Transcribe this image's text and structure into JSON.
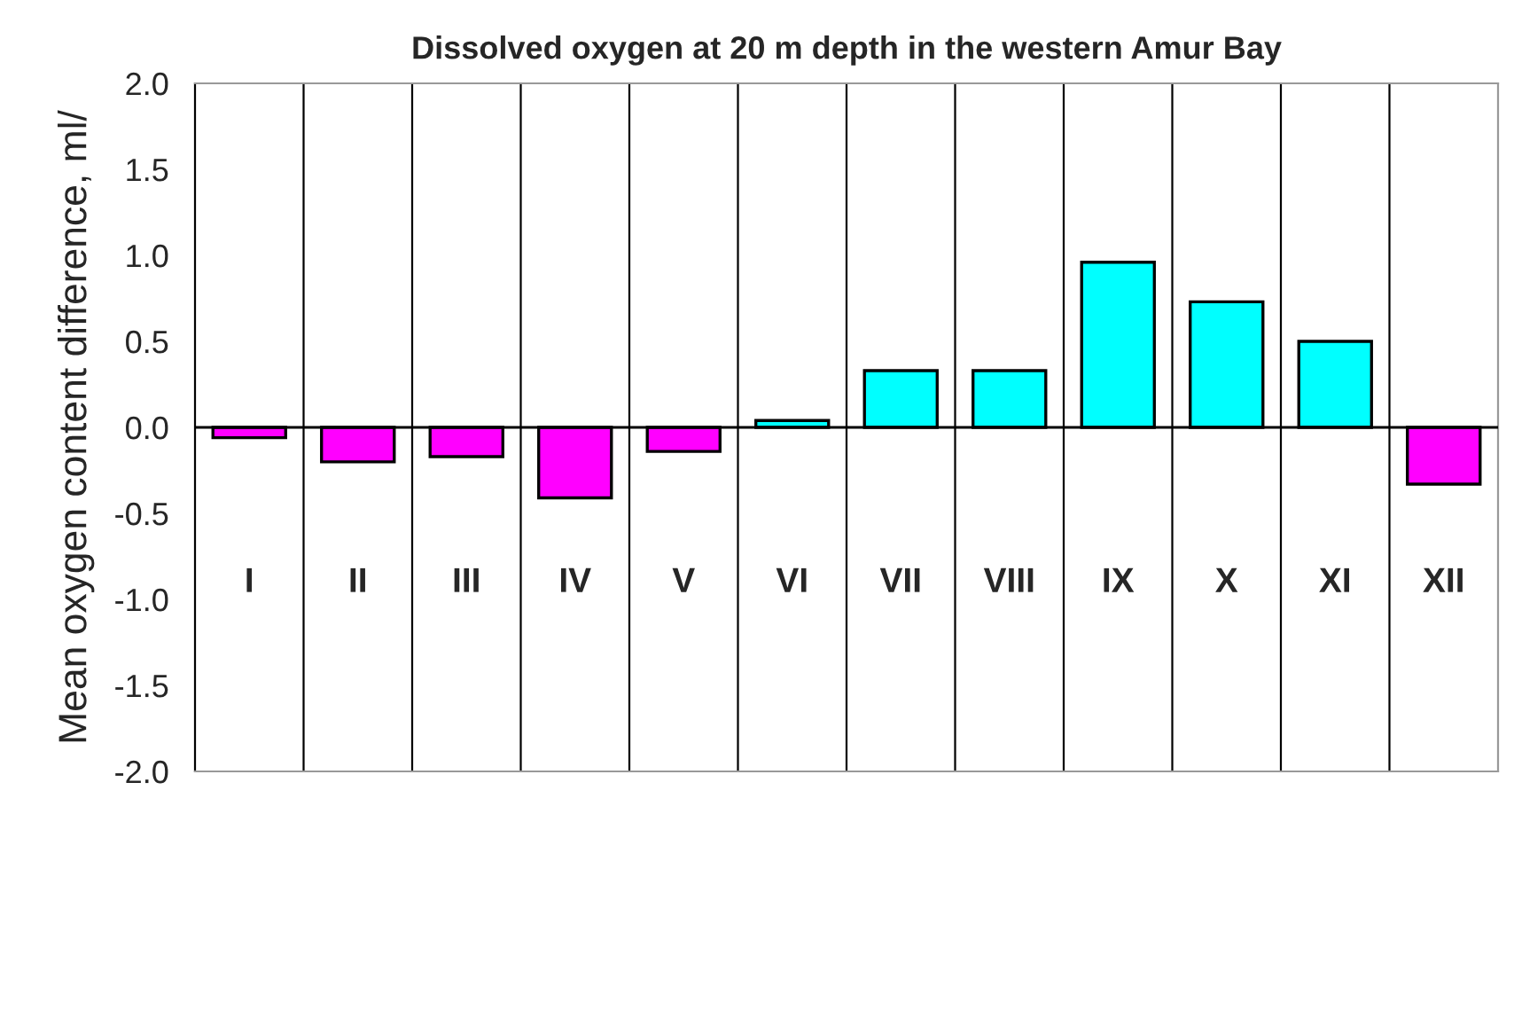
{
  "chart_data": {
    "type": "bar",
    "title": "Dissolved oxygen at 20 m depth in the western Amur Bay",
    "ylabel": "Mean oxygen content difference, ml/",
    "categories": [
      "I",
      "II",
      "III",
      "IV",
      "V",
      "VI",
      "VII",
      "VIII",
      "IX",
      "X",
      "XI",
      "XII"
    ],
    "values": [
      -0.06,
      -0.2,
      -0.17,
      -0.41,
      -0.14,
      0.04,
      0.33,
      0.33,
      0.96,
      0.73,
      0.5,
      -0.33
    ],
    "colors": [
      "#ff00ff",
      "#ff00ff",
      "#ff00ff",
      "#ff00ff",
      "#ff00ff",
      "#00ffff",
      "#00ffff",
      "#00ffff",
      "#00ffff",
      "#00ffff",
      "#00ffff",
      "#ff00ff"
    ],
    "ylim": [
      -2.0,
      2.0
    ],
    "yticks": [
      {
        "value": -2.0,
        "label": "-2.0"
      },
      {
        "value": -1.5,
        "label": "-1.5"
      },
      {
        "value": -1.0,
        "label": "-1.0"
      },
      {
        "value": -0.5,
        "label": "-0.5"
      },
      {
        "value": 0,
        "label": "0.0"
      },
      {
        "value": 0.5,
        "label": "0.5"
      },
      {
        "value": 1.0,
        "label": "1.0"
      },
      {
        "value": 1.5,
        "label": "1.5"
      },
      {
        "value": 2.0,
        "label": "2.0"
      }
    ],
    "ref_lines": [
      {
        "axis": "y",
        "value": 0,
        "color": "#000000"
      }
    ],
    "grid": "x",
    "legend": false
  }
}
